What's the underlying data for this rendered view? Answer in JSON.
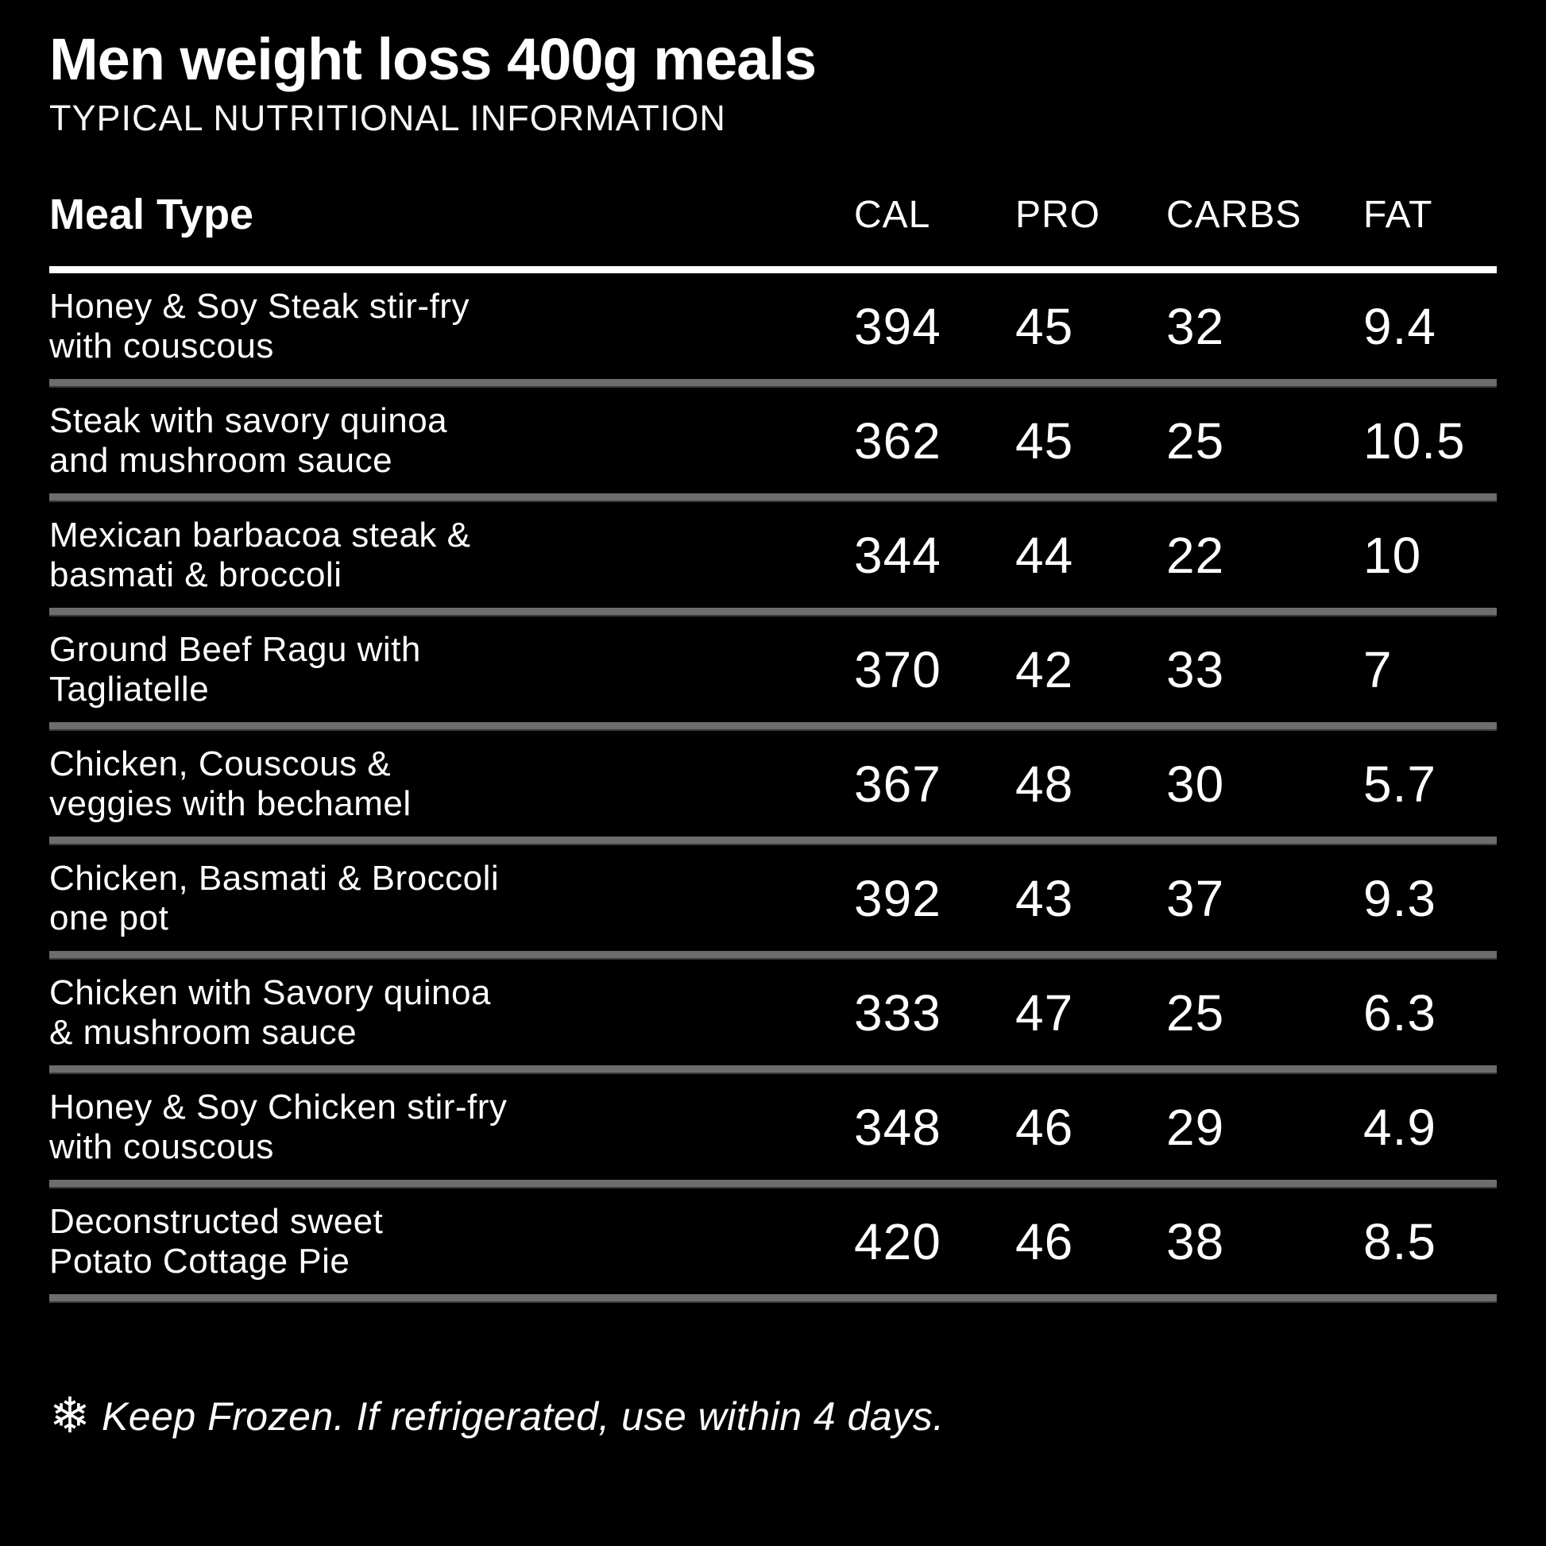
{
  "header": {
    "title": "Men weight loss 400g meals",
    "subtitle": "TYPICAL NUTRITIONAL INFORMATION"
  },
  "chart_data": {
    "type": "table",
    "title": "Men weight loss 400g meals — Typical Nutritional Information",
    "columns": [
      "Meal Type",
      "CAL",
      "PRO",
      "CARBS",
      "FAT"
    ],
    "rows": [
      [
        "Honey & Soy Steak stir-fry\nwith couscous",
        394,
        45,
        32,
        9.4
      ],
      [
        "Steak with savory quinoa\nand mushroom sauce",
        362,
        45,
        25,
        10.5
      ],
      [
        "Mexican barbacoa steak &\nbasmati & broccoli",
        344,
        44,
        22,
        10
      ],
      [
        "Ground Beef Ragu with\nTagliatelle",
        370,
        42,
        33,
        7
      ],
      [
        "Chicken, Couscous &\nveggies with bechamel",
        367,
        48,
        30,
        5.7
      ],
      [
        "Chicken, Basmati & Broccoli\none pot",
        392,
        43,
        37,
        9.3
      ],
      [
        "Chicken with Savory quinoa\n& mushroom sauce",
        333,
        47,
        25,
        6.3
      ],
      [
        "Honey & Soy Chicken stir-fry\nwith couscous",
        348,
        46,
        29,
        4.9
      ],
      [
        "Deconstructed sweet\nPotato Cottage Pie",
        420,
        46,
        38,
        8.5
      ]
    ],
    "layout": {
      "grid": "horizontal row dividers only",
      "header_divider_color": "#ffffff",
      "row_divider_color": "#6d6d6d"
    }
  },
  "colors": {
    "background": "#000000",
    "text": "#ffffff",
    "header_divider": "#ffffff",
    "row_divider": "#6d6d6d"
  },
  "footer": {
    "icon": "snowflake-icon",
    "icon_char": "❄",
    "note": "Keep Frozen. If refrigerated, use within 4 days."
  }
}
